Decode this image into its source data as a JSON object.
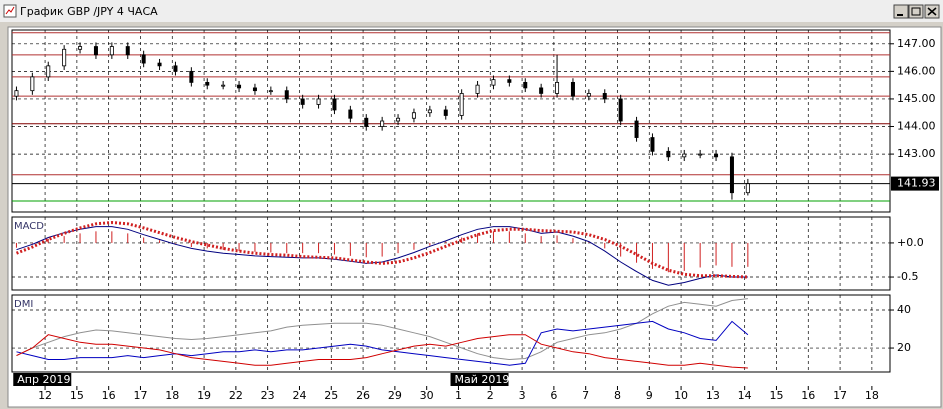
{
  "window": {
    "title": "График GBP /JPY  4 ЧАСА"
  },
  "chart_data": [
    {
      "type": "candlestick",
      "x": [
        -0.9,
        -0.4,
        0.1,
        0.6,
        1.1,
        1.6,
        2.1,
        2.6,
        3.1,
        3.6,
        4.1,
        4.6,
        5.1,
        5.6,
        6.1,
        6.6,
        7.1,
        7.6,
        8.1,
        8.6,
        9.1,
        9.6,
        10.1,
        10.6,
        11.1,
        11.6,
        12.1,
        12.6,
        13.1,
        13.6,
        14.1,
        14.6,
        15.1,
        15.6,
        16.1,
        16.6,
        17.1,
        17.6,
        18.1,
        18.6,
        19.1,
        19.6,
        20.1,
        20.6,
        21.1,
        21.6,
        22.1
      ],
      "open": [
        145.1,
        145.3,
        145.8,
        146.2,
        146.8,
        146.9,
        146.6,
        146.9,
        146.6,
        146.3,
        146.2,
        146.0,
        145.6,
        145.5,
        145.5,
        145.4,
        145.3,
        145.3,
        145.0,
        144.8,
        145.0,
        144.6,
        144.3,
        144.0,
        144.2,
        144.3,
        144.5,
        144.6,
        144.4,
        145.2,
        145.5,
        145.7,
        145.6,
        145.4,
        145.2,
        145.6,
        145.1,
        145.2,
        145.0,
        144.2,
        143.6,
        143.1,
        142.9,
        143.0,
        143.0,
        142.9,
        141.6
      ],
      "high": [
        145.45,
        145.95,
        146.35,
        146.95,
        147.05,
        147.05,
        147.05,
        147.05,
        146.75,
        146.45,
        146.35,
        146.15,
        145.75,
        145.65,
        145.65,
        145.55,
        145.45,
        145.45,
        145.15,
        145.15,
        145.15,
        144.75,
        144.45,
        144.35,
        144.45,
        144.65,
        144.75,
        144.75,
        145.35,
        145.65,
        145.85,
        145.85,
        145.75,
        145.55,
        146.6,
        145.75,
        145.35,
        145.35,
        145.15,
        144.35,
        143.75,
        143.25,
        143.15,
        143.15,
        143.15,
        143.05,
        142.1
      ],
      "low": [
        144.95,
        145.15,
        145.65,
        146.05,
        146.65,
        146.45,
        146.45,
        146.45,
        146.15,
        146.05,
        145.85,
        145.45,
        145.35,
        145.35,
        145.25,
        145.15,
        145.15,
        144.85,
        144.65,
        144.65,
        144.45,
        144.15,
        143.85,
        143.85,
        144.05,
        144.15,
        144.35,
        144.25,
        144.25,
        145.05,
        145.35,
        145.45,
        145.25,
        145.05,
        145.05,
        144.95,
        144.95,
        144.85,
        144.05,
        143.45,
        142.95,
        142.75,
        142.75,
        142.85,
        142.75,
        141.35,
        141.5
      ],
      "close": [
        145.3,
        145.8,
        146.2,
        146.8,
        146.9,
        146.6,
        146.9,
        146.6,
        146.3,
        146.2,
        146.0,
        145.6,
        145.5,
        145.5,
        145.4,
        145.3,
        145.3,
        145.0,
        144.8,
        145.0,
        144.6,
        144.3,
        144.0,
        144.2,
        144.3,
        144.5,
        144.6,
        144.4,
        145.2,
        145.5,
        145.7,
        145.6,
        145.4,
        145.2,
        145.6,
        145.1,
        145.2,
        145.0,
        144.2,
        143.6,
        143.1,
        142.9,
        143.0,
        143.0,
        142.9,
        141.6,
        141.93
      ],
      "xlim": [
        -1.04,
        26.57
      ],
      "ylim": [
        140.9,
        147.5
      ],
      "yticks": [
        {
          "value": 147,
          "label": "147.00"
        },
        {
          "value": 146,
          "label": "146.00"
        },
        {
          "value": 145,
          "label": "145.00"
        },
        {
          "value": 144,
          "label": "144.00"
        },
        {
          "value": 143,
          "label": "143.00"
        }
      ],
      "levels": [
        {
          "value": 147.4,
          "color": "#b03030"
        },
        {
          "value": 146.6,
          "color": "#b03030"
        },
        {
          "value": 145.8,
          "color": "#b03030"
        },
        {
          "value": 145.1,
          "color": "#b03030"
        },
        {
          "value": 144.1,
          "color": "#800000"
        },
        {
          "value": 142.25,
          "color": "#b03030"
        },
        {
          "value": 141.3,
          "color": "#00a000"
        }
      ],
      "grid": true
    },
    {
      "type": "macd",
      "title": "MACD",
      "x": [
        -0.9,
        -0.4,
        0.1,
        0.6,
        1.1,
        1.6,
        2.1,
        2.6,
        3.1,
        3.6,
        4.1,
        4.6,
        5.1,
        5.6,
        6.1,
        6.6,
        7.1,
        7.6,
        8.1,
        8.6,
        9.1,
        9.6,
        10.1,
        10.6,
        11.1,
        11.6,
        12.1,
        12.6,
        13.1,
        13.6,
        14.1,
        14.6,
        15.1,
        15.6,
        16.1,
        16.6,
        17.1,
        17.6,
        18.1,
        18.6,
        19.1,
        19.6,
        20.1,
        20.6,
        21.1,
        21.6,
        22.1
      ],
      "series": [
        {
          "style": "bar",
          "color": "#d02020",
          "values": [
            -0.07,
            -0.01,
            0.06,
            0.1,
            0.14,
            0.17,
            0.17,
            0.14,
            0.08,
            0.04,
            -0.01,
            -0.06,
            -0.08,
            -0.1,
            -0.12,
            -0.13,
            -0.14,
            -0.15,
            -0.15,
            -0.15,
            -0.17,
            -0.19,
            -0.21,
            -0.2,
            -0.15,
            -0.1,
            -0.04,
            0.02,
            0.08,
            0.14,
            0.17,
            0.17,
            0.14,
            0.1,
            0.11,
            0.07,
            0.01,
            -0.08,
            -0.2,
            -0.29,
            -0.38,
            -0.43,
            -0.41,
            -0.36,
            -0.33,
            -0.35,
            -0.35
          ]
        },
        {
          "style": "line",
          "color": "#000080",
          "values": [
            -0.1,
            -0.02,
            0.08,
            0.15,
            0.2,
            0.24,
            0.24,
            0.2,
            0.12,
            0.05,
            -0.02,
            -0.08,
            -0.12,
            -0.15,
            -0.17,
            -0.19,
            -0.2,
            -0.21,
            -0.22,
            -0.22,
            -0.24,
            -0.27,
            -0.3,
            -0.28,
            -0.22,
            -0.14,
            -0.05,
            0.03,
            0.12,
            0.2,
            0.24,
            0.24,
            0.2,
            0.14,
            0.16,
            0.1,
            0.02,
            -0.12,
            -0.28,
            -0.42,
            -0.55,
            -0.62,
            -0.58,
            -0.52,
            -0.47,
            -0.5,
            -0.5
          ]
        },
        {
          "style": "dotted",
          "color": "#d02020",
          "values": [
            -0.15,
            -0.06,
            0.05,
            0.14,
            0.22,
            0.28,
            0.3,
            0.28,
            0.22,
            0.15,
            0.08,
            0.02,
            -0.03,
            -0.08,
            -0.12,
            -0.15,
            -0.17,
            -0.18,
            -0.2,
            -0.21,
            -0.22,
            -0.25,
            -0.28,
            -0.3,
            -0.28,
            -0.22,
            -0.14,
            -0.05,
            0.04,
            0.12,
            0.18,
            0.2,
            0.2,
            0.18,
            0.17,
            0.16,
            0.12,
            0.05,
            -0.05,
            -0.17,
            -0.3,
            -0.4,
            -0.46,
            -0.48,
            -0.48,
            -0.49,
            -0.5
          ]
        }
      ],
      "xlim": [
        -1.04,
        26.57
      ],
      "ylim": [
        -0.69,
        0.38
      ],
      "yticks": [
        {
          "value": 0,
          "label": "+0.0"
        },
        {
          "value": -0.5,
          "label": "-0.5"
        }
      ],
      "grid": true
    },
    {
      "type": "line",
      "title": "DMI",
      "x": [
        -0.9,
        -0.4,
        0.1,
        0.6,
        1.1,
        1.6,
        2.1,
        2.6,
        3.1,
        3.6,
        4.1,
        4.6,
        5.1,
        5.6,
        6.1,
        6.6,
        7.1,
        7.6,
        8.1,
        8.6,
        9.1,
        9.6,
        10.1,
        10.6,
        11.1,
        11.6,
        12.1,
        12.6,
        13.1,
        13.6,
        14.1,
        14.6,
        15.1,
        15.6,
        16.1,
        16.6,
        17.1,
        17.6,
        18.1,
        18.6,
        19.1,
        19.6,
        20.1,
        20.6,
        21.1,
        21.6,
        22.1
      ],
      "series": [
        {
          "color": "#909090",
          "values": [
            16,
            20,
            23,
            26,
            28,
            29.5,
            29,
            28,
            27,
            26,
            25,
            24.5,
            25,
            26,
            27,
            28,
            29,
            31,
            32,
            32.5,
            33,
            33,
            33,
            32,
            30,
            28,
            26,
            23,
            20,
            17,
            15,
            14,
            14.5,
            18,
            23,
            25,
            27,
            28,
            30,
            33,
            38,
            42,
            44,
            43,
            42,
            45,
            46
          ]
        },
        {
          "color": "#0000c0",
          "values": [
            18,
            16,
            14,
            14,
            15,
            15,
            15,
            16,
            15,
            16,
            17,
            16,
            17,
            18,
            18,
            19,
            18,
            19,
            19,
            20,
            21,
            22,
            21,
            19,
            18,
            17,
            16,
            15,
            14,
            13,
            12,
            11,
            12,
            28,
            30,
            29,
            30,
            31,
            32,
            33,
            34,
            30,
            28,
            25,
            24,
            34,
            27
          ]
        },
        {
          "color": "#d00000",
          "values": [
            16,
            20,
            27,
            25,
            23,
            22,
            22,
            21,
            20,
            19,
            17,
            15,
            14,
            13,
            12,
            11,
            11,
            12,
            13,
            14,
            14,
            14,
            15,
            17,
            19,
            21,
            22,
            21,
            23,
            25,
            26,
            27,
            27,
            22,
            20,
            18,
            17,
            15,
            14,
            13,
            12,
            11,
            11,
            12,
            11,
            10,
            9.5
          ]
        }
      ],
      "xlim": [
        -1.04,
        26.57
      ],
      "ylim": [
        7.4,
        47.9
      ],
      "yticks": [
        40,
        20
      ],
      "xticks": [
        {
          "value": 0,
          "label": "12"
        },
        {
          "value": 1,
          "label": "15"
        },
        {
          "value": 2,
          "label": "16"
        },
        {
          "value": 3,
          "label": "17"
        },
        {
          "value": 4,
          "label": "18"
        },
        {
          "value": 5,
          "label": "19"
        },
        {
          "value": 6,
          "label": "22"
        },
        {
          "value": 7,
          "label": "23"
        },
        {
          "value": 8,
          "label": "24"
        },
        {
          "value": 9,
          "label": "25"
        },
        {
          "value": 10,
          "label": "26"
        },
        {
          "value": 11,
          "label": "29"
        },
        {
          "value": 12,
          "label": "30"
        },
        {
          "value": 13,
          "label": "1"
        },
        {
          "value": 14,
          "label": "2"
        },
        {
          "value": 15,
          "label": "3"
        },
        {
          "value": 16,
          "label": "6"
        },
        {
          "value": 17,
          "label": "7"
        },
        {
          "value": 18,
          "label": "8"
        },
        {
          "value": 19,
          "label": "9"
        },
        {
          "value": 20,
          "label": "10"
        },
        {
          "value": 21,
          "label": "13"
        },
        {
          "value": 22,
          "label": "14"
        },
        {
          "value": 23,
          "label": "15"
        },
        {
          "value": 24,
          "label": "16"
        },
        {
          "value": 25,
          "label": "17"
        },
        {
          "value": 26,
          "label": "18"
        }
      ],
      "month_labels": [
        {
          "value": -1.0,
          "label": "Апр 2019"
        },
        {
          "value": 12.75,
          "label": "Май 2019"
        }
      ],
      "grid": true
    }
  ]
}
